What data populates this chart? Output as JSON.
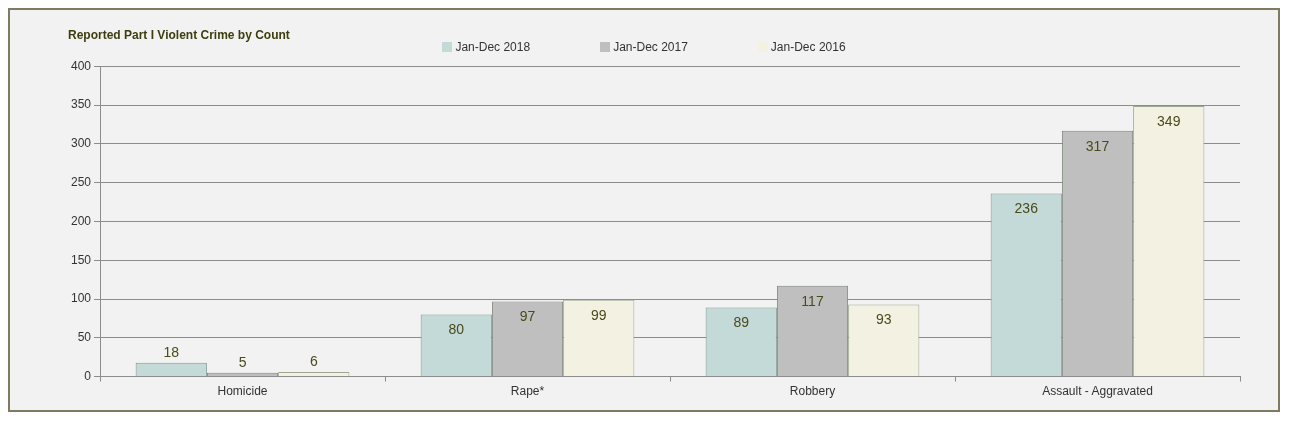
{
  "chart_data": {
    "type": "bar",
    "title": "Reported Part I Violent Crime by Count",
    "categories": [
      "Homicide",
      "Rape*",
      "Robbery",
      "Assault - Aggravated"
    ],
    "series": [
      {
        "name": "Jan-Dec 2018",
        "color": "#c4dad8",
        "values": [
          18,
          80,
          89,
          236
        ]
      },
      {
        "name": "Jan-Dec 2017",
        "color": "#bfbfbf",
        "values": [
          5,
          97,
          117,
          317
        ]
      },
      {
        "name": "Jan-Dec 2016",
        "color": "#f3f1e2",
        "values": [
          6,
          99,
          93,
          349
        ]
      }
    ],
    "ylim": [
      0,
      400
    ],
    "yticks": [
      0,
      50,
      100,
      150,
      200,
      250,
      300,
      350,
      400
    ],
    "grid": "y",
    "legend": "top",
    "data_labels": true
  }
}
